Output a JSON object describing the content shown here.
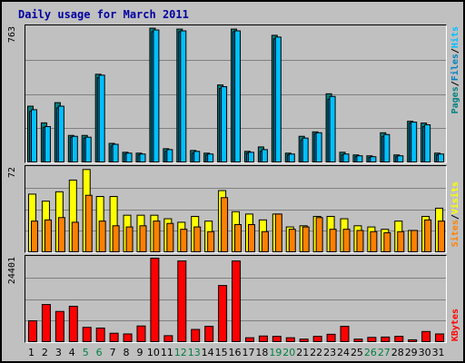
{
  "title": "Daily usage for March 2011",
  "colors": {
    "pages": "#008080",
    "files": "#0080c0",
    "hits": "#00c0ff",
    "visits": "#ffff00",
    "sites": "#ff8000",
    "kbytes": "#ff0000",
    "weekday_label": "#000000",
    "weekend_label": "#008040",
    "title": "#0000a0"
  },
  "legend": {
    "top": {
      "pages": "Pages",
      "sep1": "/",
      "files": "Files",
      "sep2": "/",
      "hits": "Hits"
    },
    "middle": {
      "sites": "Sites",
      "sep": "/",
      "visits": "Visits"
    },
    "bottom": {
      "kbytes": "KBytes"
    }
  },
  "chart_data": [
    {
      "type": "bar",
      "title": "Daily usage for March 2011",
      "categories": [
        "1",
        "2",
        "3",
        "4",
        "5",
        "6",
        "7",
        "8",
        "9",
        "10",
        "11",
        "12",
        "13",
        "14",
        "15",
        "16",
        "17",
        "18",
        "19",
        "20",
        "21",
        "22",
        "23",
        "24",
        "25",
        "26",
        "27",
        "28",
        "29",
        "30",
        "31"
      ],
      "weekend_days": [
        "5",
        "6",
        "12",
        "13",
        "19",
        "20",
        "26",
        "27"
      ],
      "ymax_label": "763",
      "ylim": [
        0,
        763
      ],
      "grid": true,
      "series": [
        {
          "name": "Pages",
          "values": [
            320,
            226,
            340,
            155,
            155,
            500,
            110,
            60,
            55,
            760,
            80,
            755,
            70,
            55,
            440,
            755,
            65,
            90,
            720,
            55,
            150,
            175,
            390,
            60,
            45,
            40,
            170,
            45,
            235,
            225,
            55
          ]
        },
        {
          "name": "Files",
          "values": [
            290,
            200,
            310,
            145,
            140,
            480,
            95,
            50,
            45,
            740,
            65,
            740,
            55,
            45,
            420,
            740,
            55,
            65,
            700,
            45,
            130,
            165,
            360,
            45,
            35,
            30,
            150,
            35,
            225,
            205,
            45
          ]
        },
        {
          "name": "Hits",
          "values": [
            300,
            205,
            320,
            150,
            145,
            495,
            105,
            55,
            50,
            750,
            75,
            745,
            65,
            50,
            430,
            745,
            60,
            75,
            710,
            50,
            140,
            170,
            375,
            50,
            40,
            35,
            160,
            40,
            230,
            215,
            50
          ]
        }
      ]
    },
    {
      "type": "bar",
      "categories": [
        "1",
        "2",
        "3",
        "4",
        "5",
        "6",
        "7",
        "8",
        "9",
        "10",
        "11",
        "12",
        "13",
        "14",
        "15",
        "16",
        "17",
        "18",
        "19",
        "20",
        "21",
        "22",
        "23",
        "24",
        "25",
        "26",
        "27",
        "28",
        "29",
        "30",
        "31"
      ],
      "ymax_label": "72",
      "ylim": [
        0,
        72
      ],
      "grid": true,
      "series": [
        {
          "name": "Visits",
          "values": [
            50,
            44,
            52,
            62,
            71,
            48,
            48,
            32,
            32,
            32,
            29,
            26,
            31,
            27,
            53,
            35,
            33,
            28,
            33,
            22,
            23,
            31,
            31,
            29,
            23,
            22,
            20,
            27,
            19,
            31,
            38
          ]
        },
        {
          "name": "Sites",
          "values": [
            27,
            28,
            30,
            26,
            49,
            27,
            23,
            22,
            23,
            27,
            25,
            20,
            22,
            18,
            47,
            24,
            24,
            18,
            33,
            20,
            22,
            30,
            20,
            20,
            19,
            18,
            17,
            18,
            19,
            28,
            27
          ]
        }
      ]
    },
    {
      "type": "bar",
      "categories": [
        "1",
        "2",
        "3",
        "4",
        "5",
        "6",
        "7",
        "8",
        "9",
        "10",
        "11",
        "12",
        "13",
        "14",
        "15",
        "16",
        "17",
        "18",
        "19",
        "20",
        "21",
        "22",
        "23",
        "24",
        "25",
        "26",
        "27",
        "28",
        "29",
        "30",
        "31"
      ],
      "ymax_label": "24401",
      "ylim": [
        0,
        24401
      ],
      "grid": true,
      "series": [
        {
          "name": "KBytes",
          "values": [
            6300,
            11000,
            9000,
            10500,
            4400,
            4200,
            2700,
            2500,
            4800,
            24401,
            2000,
            23600,
            3800,
            4700,
            16500,
            23600,
            1400,
            1900,
            1800,
            1400,
            1000,
            1800,
            2400,
            4700,
            1000,
            1500,
            1600,
            1800,
            800,
            3200,
            2500
          ]
        }
      ]
    }
  ]
}
